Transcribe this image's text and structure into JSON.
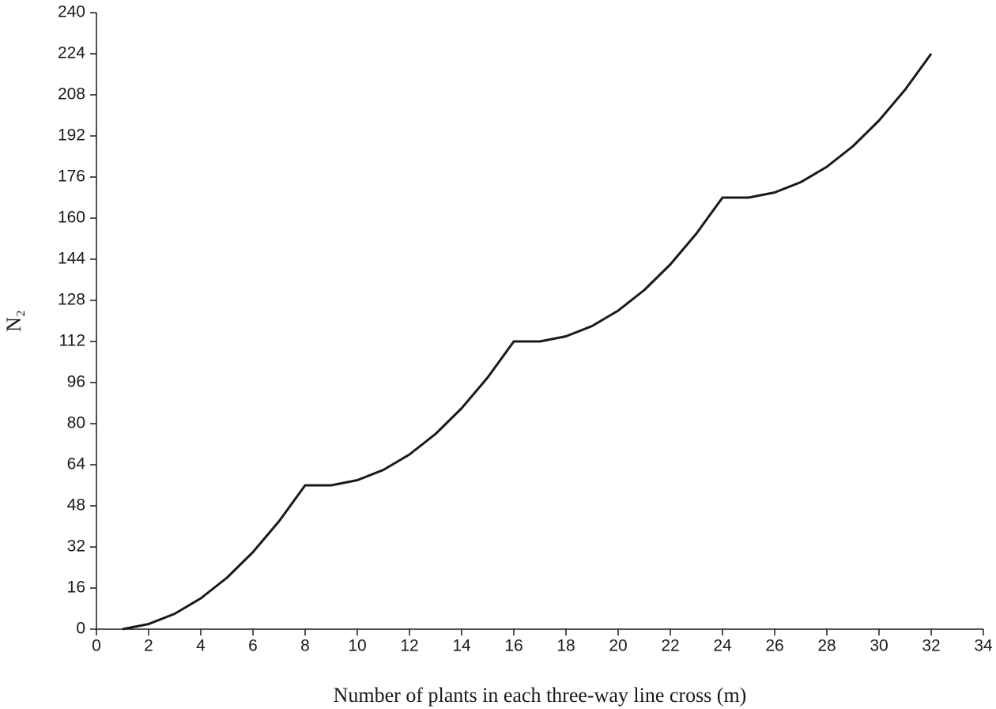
{
  "chart_data": {
    "type": "line",
    "xlabel": "Number of plants in each three-way line cross (m)",
    "ylabel": "N₂",
    "x": [
      1,
      2,
      3,
      4,
      5,
      6,
      7,
      8,
      9,
      10,
      11,
      12,
      13,
      14,
      15,
      16,
      17,
      18,
      19,
      20,
      21,
      22,
      23,
      24,
      25,
      26,
      27,
      28,
      29,
      30,
      31,
      32
    ],
    "series": [
      {
        "color": "#1a1a1a",
        "values": [
          0,
          2,
          6,
          12,
          20,
          30,
          42,
          56,
          56,
          58,
          62,
          68,
          76,
          86,
          98,
          112,
          112,
          114,
          118,
          124,
          132,
          142,
          154,
          168,
          168,
          170,
          174,
          180,
          188,
          198,
          210,
          224
        ]
      }
    ],
    "xlim": [
      0,
      34
    ],
    "xticks": [
      0,
      2,
      4,
      6,
      8,
      10,
      12,
      14,
      16,
      18,
      20,
      22,
      24,
      26,
      28,
      30,
      32,
      34
    ],
    "ylim": [
      0,
      240
    ],
    "yticks": [
      0,
      16,
      32,
      48,
      64,
      80,
      96,
      112,
      128,
      144,
      160,
      176,
      192,
      208,
      224,
      240
    ],
    "grid": false
  }
}
